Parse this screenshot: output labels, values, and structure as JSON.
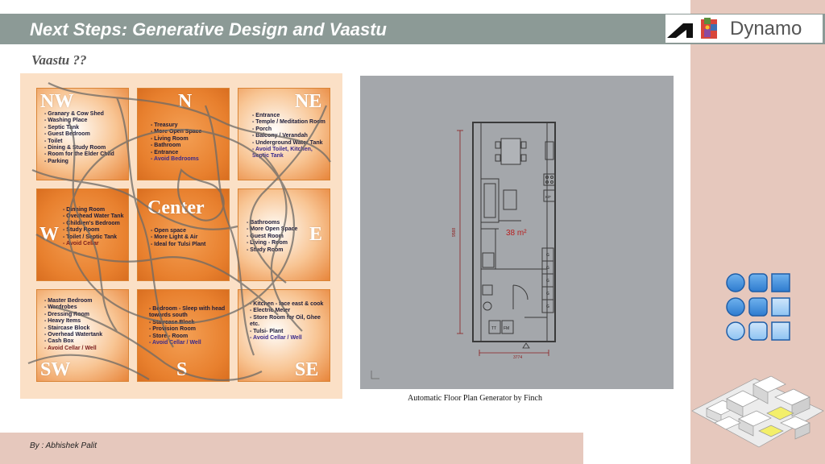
{
  "slide": {
    "title": "Next Steps: Generative Design and Vaastu",
    "subtitle": "Vaastu ??",
    "logo_text": "Dynamo",
    "caption": "Automatic Floor Plan Generator by Finch",
    "author": "By : Abhishek Palit"
  },
  "vaastu": {
    "cells": [
      {
        "dir": "NW",
        "items": [
          "Granary & Cow Shed",
          "Washing Place",
          "Septic Tank",
          "Guest Bedroom",
          "Toilet",
          "Dining & Study Room",
          "Room for the Elder Child",
          "Parking"
        ]
      },
      {
        "dir": "N",
        "items": [
          "Treasury",
          "More Open Space",
          "Living Room",
          "Bathroom",
          "Entrance",
          "Avoid Bedrooms"
        ]
      },
      {
        "dir": "NE",
        "items": [
          "Entrance",
          "Temple / Meditation Room",
          "Porch",
          "Balcony / Verandah",
          "Underground Water Tank",
          "Avoid Toilet, Kitchen, Septic Tank"
        ]
      },
      {
        "dir": "W",
        "items": [
          "Dinning Room",
          "Overhead Water Tank",
          "Children's Bedroom",
          "Study Room",
          "Toilet / Septic Tank",
          "Avoid Cellar"
        ]
      },
      {
        "dir": "Center",
        "items": [
          "Open space",
          "More Light & Air",
          "Ideal for Tulsi Plant"
        ]
      },
      {
        "dir": "E",
        "items": [
          "Bathrooms",
          "More Open Space",
          "Guest Room",
          "Living - Room",
          "Study Room"
        ]
      },
      {
        "dir": "SW",
        "items": [
          "Master Bedroom",
          "Wardrobes",
          "Dressing Room",
          "Heavy Items",
          "Staircase Block",
          "Overhead Watertank",
          "Cash Box",
          "Avoid Cellar / Well"
        ]
      },
      {
        "dir": "S",
        "items": [
          "Bedroom - Sleep with head towards south",
          "Staircase Block",
          "Provision Room",
          "Store - Room",
          "Avoid Cellar / Well"
        ]
      },
      {
        "dir": "SE",
        "items": [
          "Kitchen - face east & cook",
          "Electric Meter",
          "Store Room for Oil, Ghee etc.",
          "Tulsi- Plant",
          "Avoid Cellar / Well"
        ]
      }
    ]
  },
  "floorplan": {
    "area": "38 m²",
    "dim_width": "3774",
    "dim_height": "9588",
    "label_tt": "TT",
    "label_fm": "FM",
    "label_kf": "K/F",
    "label_g": "G"
  },
  "colors": {
    "title_bar": "#8c9a96",
    "panel": "#e6c8bd",
    "vaastu_orange": "#e8802e",
    "icon_blue": "#3b8ed8"
  }
}
